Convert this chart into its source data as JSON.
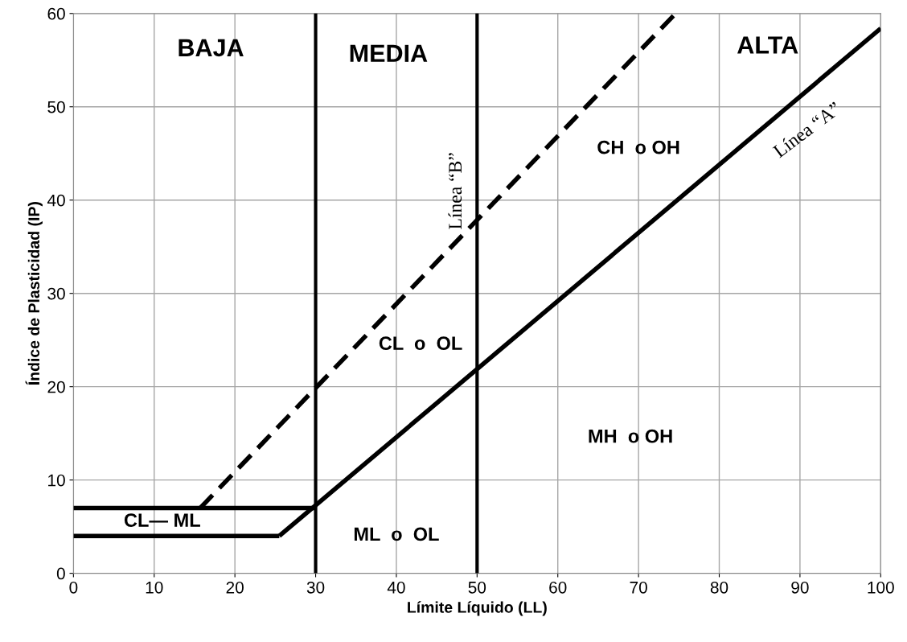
{
  "chart_data": {
    "type": "line",
    "xlabel": "Límite Líquido (LL)",
    "ylabel": "Índice de Plasticidad (IP)",
    "xlim": [
      0,
      100
    ],
    "ylim": [
      0,
      60
    ],
    "xticks": [
      0,
      10,
      20,
      30,
      40,
      50,
      60,
      70,
      80,
      90,
      100
    ],
    "yticks": [
      0,
      10,
      20,
      30,
      40,
      50,
      60
    ],
    "grid": true,
    "marker": "none",
    "series": [
      {
        "color": "#000000",
        "x": [
          25.5,
          100
        ],
        "values": [
          4,
          58.4
        ],
        "line_style": "solid"
      },
      {
        "color": "#000000",
        "x": [
          15.7,
          74.6
        ],
        "values": [
          7,
          60
        ],
        "line_style": "dashed"
      },
      {
        "color": "#000000",
        "x": [
          0,
          30
        ],
        "values": [
          7,
          7
        ],
        "line_style": "solid"
      },
      {
        "color": "#000000",
        "x": [
          0,
          25.5
        ],
        "values": [
          4,
          4
        ],
        "line_style": "solid"
      }
    ],
    "ref_lines": [
      {
        "axis": "x",
        "value": 30,
        "color": "#000000"
      },
      {
        "axis": "x",
        "value": 50,
        "color": "#000000"
      }
    ],
    "annotations": [
      "BAJA",
      "MEDIA",
      "ALTA",
      "CH  o OH",
      "CL  o  OL",
      "MH  o OH",
      "CL— ML",
      "ML  o  OL",
      "Línea “B”",
      "Línea “A”"
    ]
  }
}
